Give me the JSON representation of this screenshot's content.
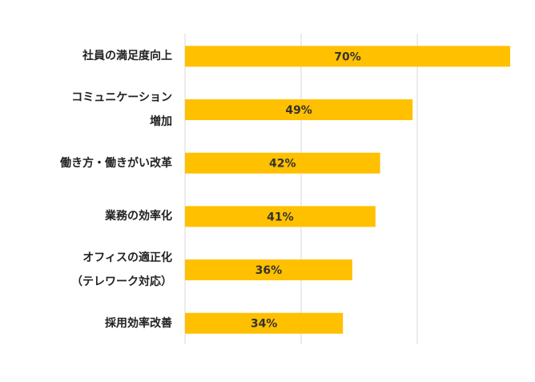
{
  "chart_data": {
    "type": "barh",
    "categories": [
      "社員の満足度向上",
      "コミュニケーション\n増加",
      "働き方・働きがい改革",
      "業務の効率化",
      "オフィスの適正化\n（テレワーク対応）",
      "採用効率改善"
    ],
    "values": [
      70,
      49,
      42,
      41,
      36,
      34
    ],
    "value_labels": [
      "70%",
      "49%",
      "42%",
      "41%",
      "36%",
      "34%"
    ],
    "color": "#ffc000",
    "xlim": [
      0,
      75
    ],
    "xticks": [
      0,
      25,
      50
    ],
    "grid": true
  }
}
